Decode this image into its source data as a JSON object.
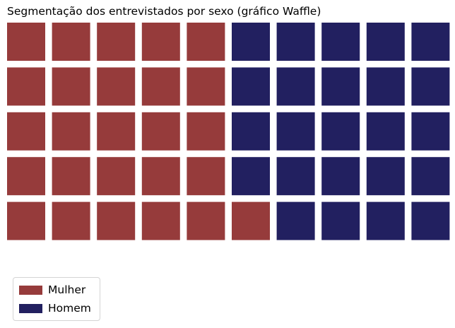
{
  "title": "Segmentação dos entrevistados por sexo (gráfico Waffle)",
  "chart_data": {
    "type": "waffle",
    "title": "Segmentação dos entrevistados por sexo (gráfico Waffle)",
    "rows": 5,
    "columns": 10,
    "fill_order": "column-major, left to right, bottom to top",
    "series": [
      {
        "name": "Mulher",
        "value": 26,
        "color": "#963b3b"
      },
      {
        "name": "Homem",
        "value": 24,
        "color": "#222060"
      }
    ],
    "legend_position": "lower-left"
  },
  "legend": {
    "items": [
      {
        "label": "Mulher",
        "color": "#963b3b"
      },
      {
        "label": "Homem",
        "color": "#222060"
      }
    ]
  }
}
